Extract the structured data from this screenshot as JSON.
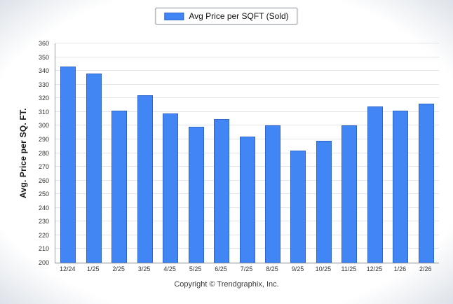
{
  "legend": {
    "label": "Avg Price per SQFT (Sold)"
  },
  "footer": {
    "copyright": "Copyright © Trendgraphix, Inc."
  },
  "chart_data": {
    "type": "bar",
    "title": "",
    "xlabel": "",
    "ylabel": "Avg. Price per SQ. FT.",
    "ylim": [
      200,
      360
    ],
    "yticks": [
      200,
      210,
      220,
      230,
      240,
      250,
      260,
      270,
      280,
      290,
      300,
      310,
      320,
      330,
      340,
      350,
      360
    ],
    "grid": true,
    "legend_position": "top",
    "bar_color": "#4285f4",
    "categories": [
      "12/24",
      "1/25",
      "2/25",
      "3/25",
      "4/25",
      "5/25",
      "6/25",
      "7/25",
      "8/25",
      "9/25",
      "10/25",
      "11/25",
      "12/25",
      "1/26",
      "2/26"
    ],
    "series": [
      {
        "name": "Avg Price per SQFT (Sold)",
        "values": [
          343,
          338,
          311,
          322,
          309,
          299,
          305,
          292,
          300,
          282,
          289,
          300,
          314,
          311,
          316
        ]
      }
    ]
  }
}
